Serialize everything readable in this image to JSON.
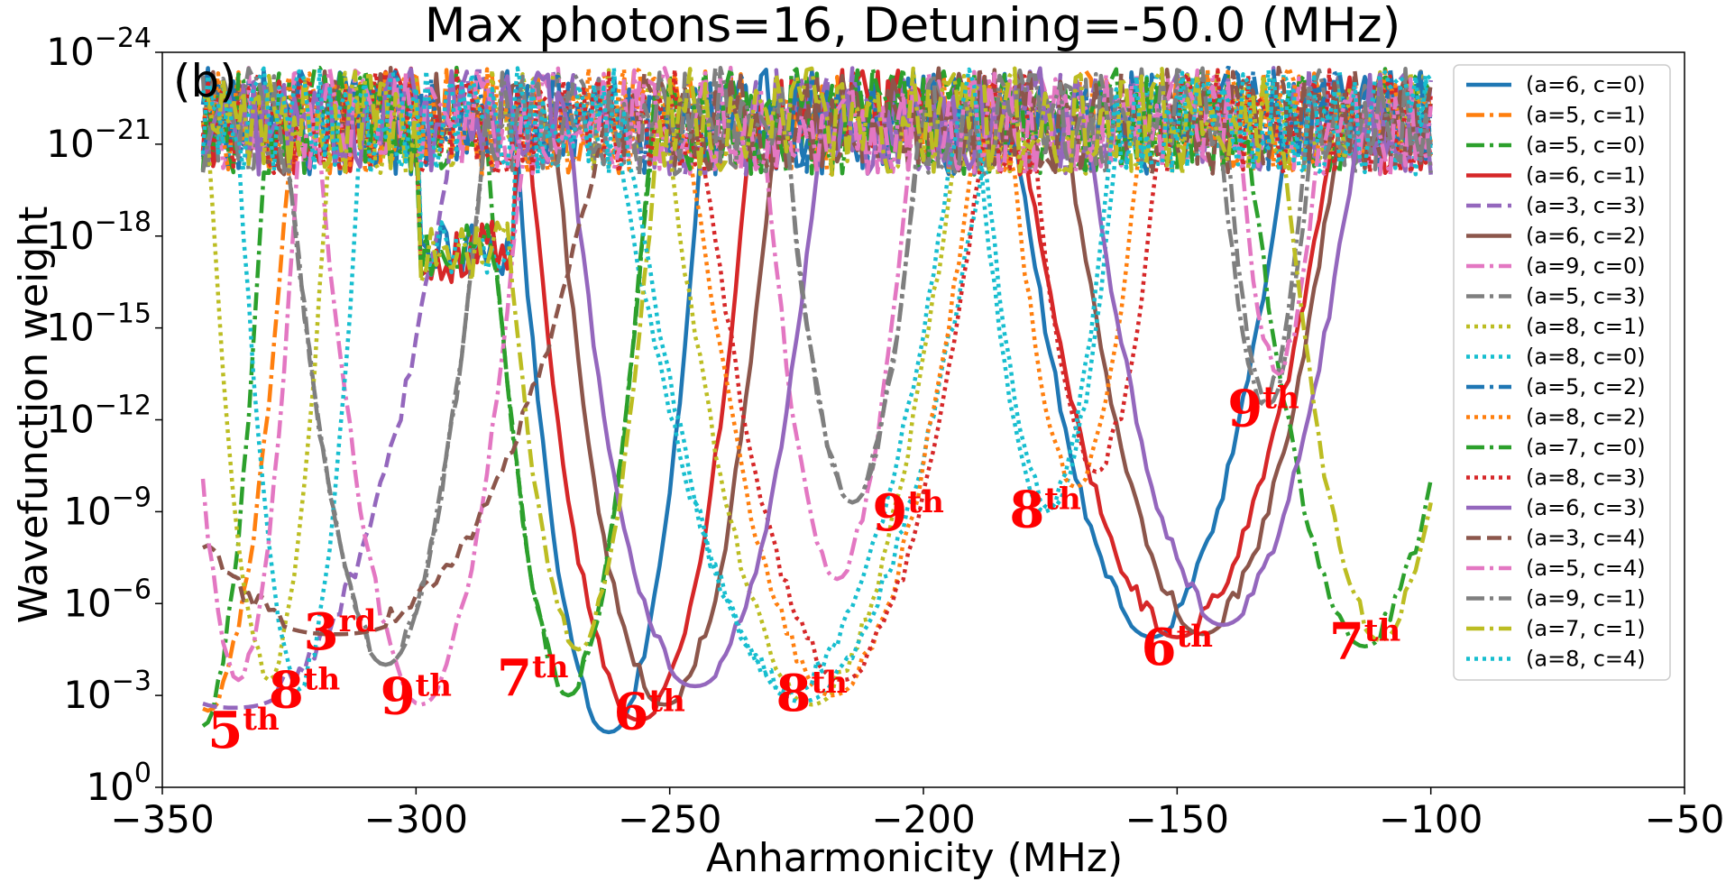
{
  "chart_data": {
    "type": "line",
    "title": "Max photons=16, Detuning=-50.0 (MHz)",
    "panel_label": "(b)",
    "xlabel": "Anharmonicity (MHz)",
    "ylabel": "Wavefunction weight",
    "xlim": [
      -350,
      -50
    ],
    "ylim_log10": [
      -24,
      0
    ],
    "yscale": "log",
    "x_ticks": [
      -350,
      -300,
      -250,
      -200,
      -150,
      -100,
      -50
    ],
    "x_tick_labels": [
      "−350",
      "−300",
      "−250",
      "−200",
      "−150",
      "−100",
      "−50"
    ],
    "y_ticks_log10": [
      0,
      -3,
      -6,
      -9,
      -12,
      -15,
      -18,
      -21,
      -24
    ],
    "y_tick_base": "10",
    "y_tick_exponents": [
      "0",
      "−3",
      "−6",
      "−9",
      "−12",
      "−15",
      "−18",
      "−21",
      "−24"
    ],
    "legend_position": "right",
    "series": [
      {
        "name": "(a=6, c=0)",
        "color": "#1f77b4",
        "style": "solid",
        "peaks": [
          [
            -262,
            -1.8,
            5,
            2.2
          ],
          [
            -155,
            -4.9,
            7,
            2.0
          ]
        ]
      },
      {
        "name": "(a=5, c=1)",
        "color": "#ff7f0e",
        "style": "dashdot",
        "peaks": [
          [
            -341,
            -2.5,
            4,
            2.0
          ]
        ]
      },
      {
        "name": "(a=5, c=0)",
        "color": "#2ca02c",
        "style": "dashdot",
        "peaks": [
          [
            -342,
            -2.0,
            3,
            2.0
          ],
          [
            -270,
            -3.0,
            4,
            2.0
          ]
        ]
      },
      {
        "name": "(a=6, c=1)",
        "color": "#d62728",
        "style": "solid",
        "peaks": [
          [
            -256,
            -2.2,
            6,
            2.2
          ],
          [
            -150,
            -4.9,
            8,
            2.0
          ]
        ]
      },
      {
        "name": "(a=3, c=3)",
        "color": "#9467bd",
        "style": "dashed",
        "peaks": [
          [
            -336,
            -2.6,
            14,
            2.5
          ]
        ]
      },
      {
        "name": "(a=6, c=2)",
        "color": "#8c564b",
        "style": "solid",
        "peaks": [
          [
            -251,
            -2.7,
            6,
            2.2
          ],
          [
            -145,
            -5.0,
            7,
            2.0
          ]
        ]
      },
      {
        "name": "(a=9, c=0)",
        "color": "#e377c2",
        "style": "dashdot",
        "peaks": [
          [
            -299,
            -2.7,
            5,
            2.0
          ],
          [
            -217,
            -6.8,
            4,
            2.0
          ]
        ]
      },
      {
        "name": "(a=5, c=3)",
        "color": "#7f7f7f",
        "style": "dashdot",
        "peaks": [
          [
            -306,
            -4.0,
            5,
            2.0
          ],
          [
            -214,
            -9.3,
            4,
            2.0
          ],
          [
            -132,
            -12.5,
            3,
            2.0
          ]
        ]
      },
      {
        "name": "(a=8, c=1)",
        "color": "#bcbd22",
        "style": "dotted",
        "peaks": [
          [
            -329,
            -3.5,
            3,
            2.0
          ],
          [
            -222,
            -2.7,
            7,
            2.0
          ]
        ]
      },
      {
        "name": "(a=8, c=0)",
        "color": "#17becf",
        "style": "dotted",
        "peaks": [
          [
            -323,
            -3.2,
            3,
            2.0
          ],
          [
            -224,
            -2.8,
            9,
            2.0
          ],
          [
            -175,
            -9.1,
            4,
            2.0
          ]
        ]
      },
      {
        "name": "(a=5, c=2)",
        "color": "#1f77b4",
        "style": "dashdot",
        "peaks": []
      },
      {
        "name": "(a=8, c=2)",
        "color": "#ff7f0e",
        "style": "dotted",
        "peaks": [
          [
            -218,
            -3.0,
            7,
            2.0
          ],
          [
            -170,
            -9.8,
            4,
            2.0
          ]
        ]
      },
      {
        "name": "(a=7, c=0)",
        "color": "#2ca02c",
        "style": "dashdot",
        "peaks": [
          [
            -270,
            -3.0,
            4,
            2.0
          ],
          [
            -113,
            -4.6,
            6,
            2.0
          ]
        ]
      },
      {
        "name": "(a=8, c=3)",
        "color": "#d62728",
        "style": "dotted",
        "peaks": [
          [
            -216,
            -3.5,
            7,
            2.0
          ],
          [
            -166,
            -10.3,
            4,
            2.0
          ]
        ]
      },
      {
        "name": "(a=6, c=3)",
        "color": "#9467bd",
        "style": "solid",
        "peaks": [
          [
            -245,
            -3.3,
            7,
            2.2
          ],
          [
            -141,
            -5.3,
            7,
            2.0
          ]
        ]
      },
      {
        "name": "(a=3, c=4)",
        "color": "#8c564b",
        "style": "dashed",
        "peaks": [
          [
            -316,
            -5.0,
            18,
            2.5
          ]
        ]
      },
      {
        "name": "(a=5, c=4)",
        "color": "#e377c2",
        "style": "dashdot",
        "peaks": [
          [
            -335,
            -3.5,
            3,
            2.0
          ],
          [
            -130,
            -13.5,
            3,
            2.0
          ]
        ]
      },
      {
        "name": "(a=9, c=1)",
        "color": "#7f7f7f",
        "style": "dashdot",
        "peaks": [
          [
            -306,
            -4.0,
            5,
            2.0
          ],
          [
            -214,
            -9.3,
            4,
            2.0
          ],
          [
            -133,
            -12.5,
            3,
            2.0
          ]
        ]
      },
      {
        "name": "(a=7, c=1)",
        "color": "#bcbd22",
        "style": "dashdot",
        "peaks": [
          [
            -268,
            -4.5,
            4,
            2.0
          ],
          [
            -110,
            -4.8,
            5,
            2.0
          ]
        ]
      },
      {
        "name": "(a=8, c=4)",
        "color": "#17becf",
        "style": "dotted",
        "peaks": [
          [
            -226,
            -3.1,
            8,
            2.0
          ],
          [
            -176,
            -9.0,
            4,
            2.0
          ]
        ]
      }
    ],
    "annotations": [
      {
        "text": "5",
        "suffix": "th",
        "x": -334,
        "y_log10": -1.3
      },
      {
        "text": "8",
        "suffix": "th",
        "x": -322,
        "y_log10": -2.6
      },
      {
        "text": "3",
        "suffix": "rd",
        "x": -315,
        "y_log10": -4.5
      },
      {
        "text": "9",
        "suffix": "th",
        "x": -300,
        "y_log10": -2.4
      },
      {
        "text": "7",
        "suffix": "th",
        "x": -277,
        "y_log10": -3.0
      },
      {
        "text": "6",
        "suffix": "th",
        "x": -254,
        "y_log10": -1.9
      },
      {
        "text": "8",
        "suffix": "th",
        "x": -222,
        "y_log10": -2.5
      },
      {
        "text": "9",
        "suffix": "th",
        "x": -203,
        "y_log10": -8.4
      },
      {
        "text": "8",
        "suffix": "th",
        "x": -176,
        "y_log10": -8.5
      },
      {
        "text": "6",
        "suffix": "th",
        "x": -150,
        "y_log10": -4.0
      },
      {
        "text": "9",
        "suffix": "th",
        "x": -133,
        "y_log10": -11.8
      },
      {
        "text": "7",
        "suffix": "th",
        "x": -113,
        "y_log10": -4.2
      }
    ]
  }
}
